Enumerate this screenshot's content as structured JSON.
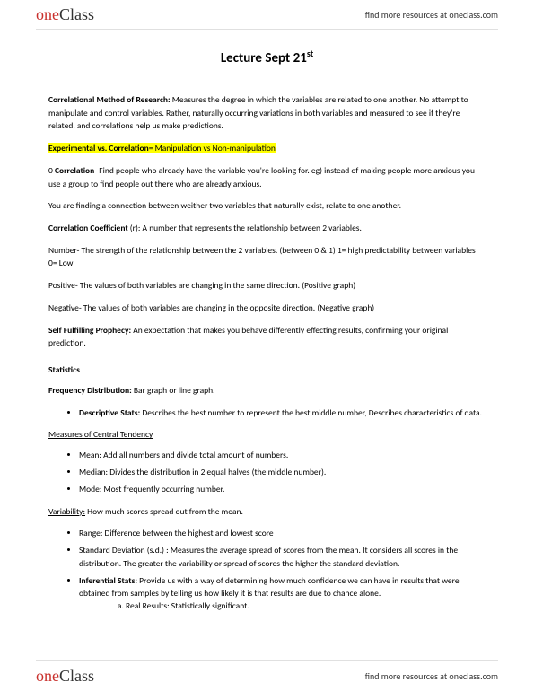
{
  "brand": {
    "part1": "one",
    "part2": "Class"
  },
  "header_link": "find more resources at oneclass.com",
  "footer_link": "find more resources at oneclass.com",
  "title_main": "Lecture Sept 21",
  "title_sup": "st",
  "p_corr_method_label": "Correlational Method of Research:",
  "p_corr_method_text": " Measures the degree in which the variables are related to one another. No attempt to manipulate and control variables. Rather, naturally occurring variations in both variables and measured to see if they're related, and correlations help us make predictions.",
  "p_exp_vs_corr_label": "Experimental vs. Correlation",
  "p_exp_vs_corr_text": "= Manipulation vs Non-manipulation",
  "p_corr_mark": "0 ",
  "p_corr_label": "Correlation-",
  "p_corr_text": " Find people who already have the variable you're looking for. eg) instead of making people more anxious you use a group to find people out there who are already anxious.",
  "p_finding": "You are finding a connection between weither two variables that naturally exist, relate to one another.",
  "p_coef_label": "Correlation Coefficient",
  "p_coef_text": " (r): A number that represents the relationship between 2 variables.",
  "p_number": "Number- The strength of the relationship between the 2 variables. (between 0 & 1) 1= high predictability between variables 0= Low",
  "p_positive": "Positive- The values of both variables are changing in the same direction. (Positive graph)",
  "p_negative": "Negative- The values of both variables are changing in the opposite direction. (Negative graph)",
  "p_self_label": "Self Fulfilling Prophecy:",
  "p_self_text": " An expectation that makes you behave differently effecting results, confirming your original prediction.",
  "h_statistics": "Statistics",
  "p_freq_label": "Frequency Distribution:",
  "p_freq_text": " Bar graph or line graph.",
  "li_desc_label": "Descriptive Stats:",
  "li_desc_text": " Describes the best number to represent the best middle number, Describes characteristics of data.",
  "h_central": "Measures of Central Tendency",
  "li_mean": "Mean: Add all numbers and divide total amount of numbers.",
  "li_median": "Median: Divides the distribution in 2 equal halves (the middle number).",
  "li_mode": "Mode: Most frequently occurring number.",
  "p_var_label": "Variability:",
  "p_var_text": " How much scores spread out from the mean.",
  "li_range": "Range: Difference between the highest and lowest score",
  "li_sd": "Standard Deviation (s.d.) : Measures the average spread of scores from the mean. It considers all scores in the distribution. The greater the variability or spread of scores the higher the standard deviation.",
  "li_inf_label": "Inferential Stats:",
  "li_inf_text": " Provide us with a way of determining how much confidence we can have in results that were obtained from samples by telling us how likely it is that results are due to chance alone.",
  "li_real": "Real Results: Statistically significant.",
  "colors": {
    "highlight": "#ffff00",
    "brand_red": "#c9302c",
    "brand_dark": "#333333",
    "background": "#ffffff",
    "text": "#000000",
    "divider": "#e0e0e0"
  },
  "typography": {
    "body_fontsize": 9.5,
    "title_fontsize": 15,
    "logo_fontsize": 18,
    "header_link_fontsize": 10
  }
}
